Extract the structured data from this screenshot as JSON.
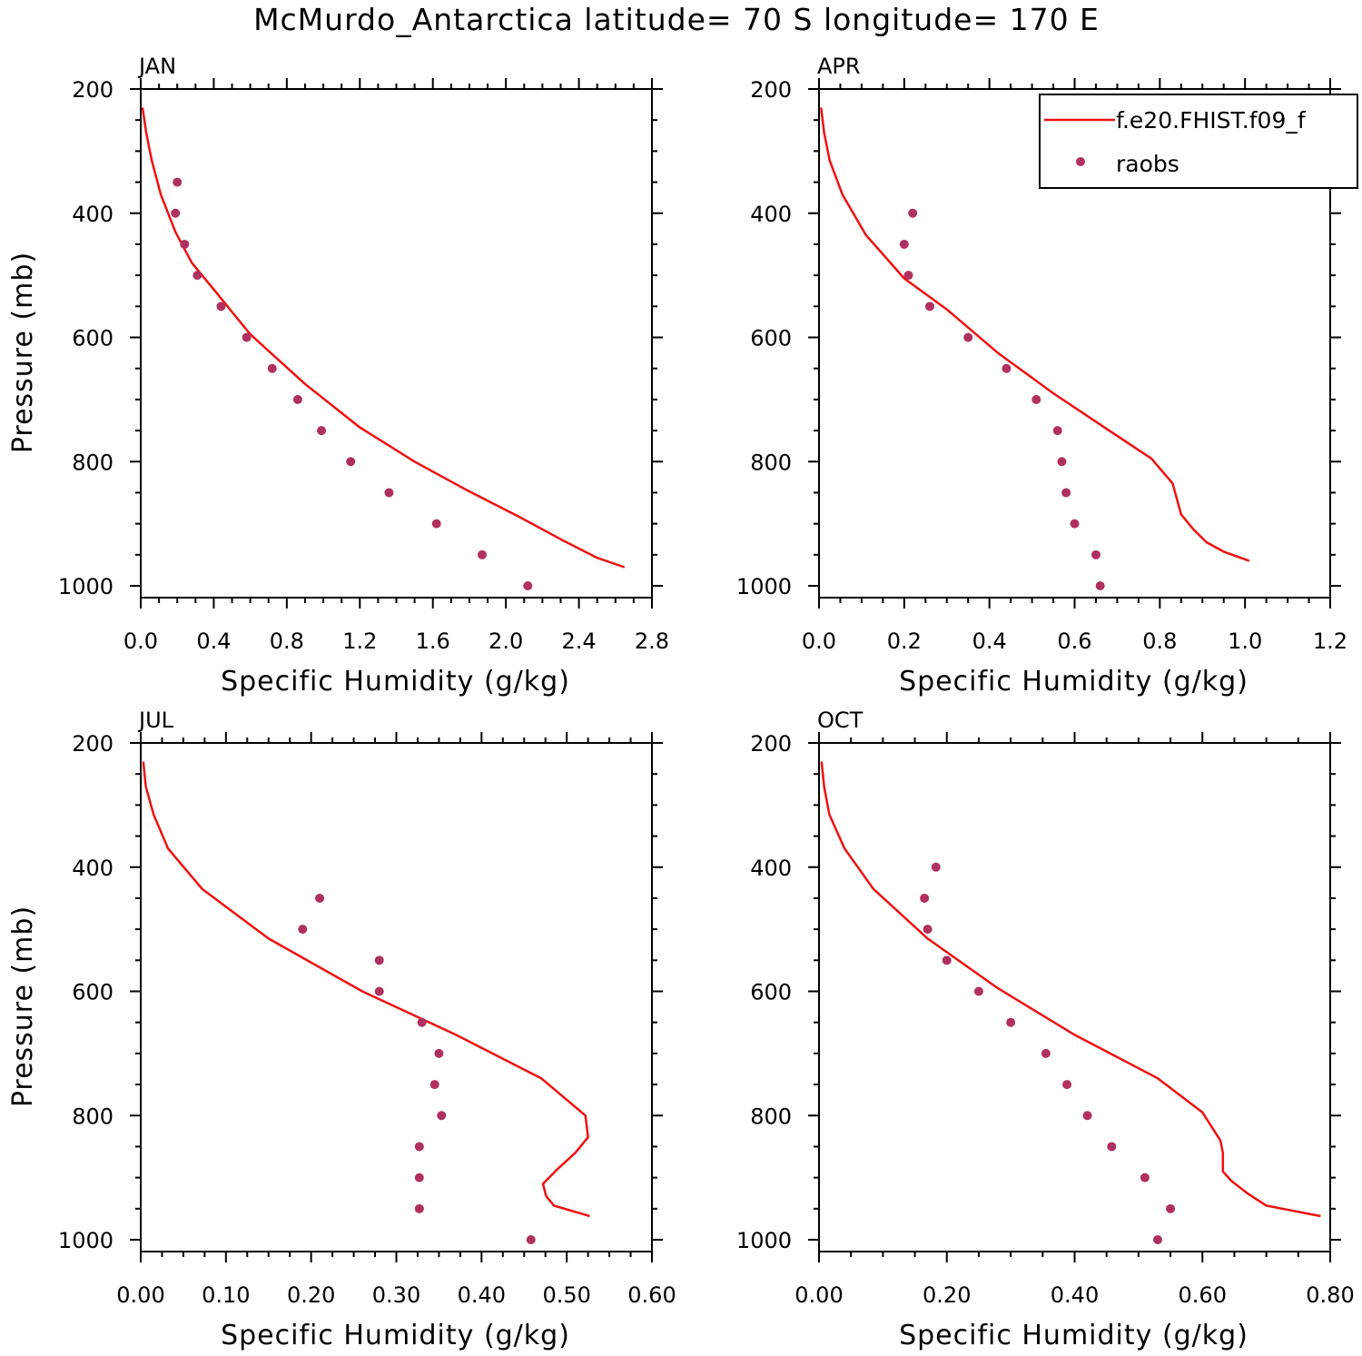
{
  "figure": {
    "title": "McMurdo_Antarctica  latitude= 70 S longitude= 170 E"
  },
  "colors": {
    "model_line": "#ee1111",
    "obs_marker": "#b03060",
    "axis": "#000000"
  },
  "legend": {
    "placement": "top-right of APR panel",
    "entries": [
      {
        "label": "f.e20.FHIST.f09_f",
        "style": "line"
      },
      {
        "label": "raobs",
        "style": "marker"
      }
    ]
  },
  "chart_data": [
    {
      "type": "line",
      "panel": "JAN",
      "title": "JAN",
      "xlabel": "Specific Humidity (g/kg)",
      "ylabel": "Pressure (mb)",
      "xlim": [
        0,
        2.8
      ],
      "ylim": [
        1000,
        200
      ],
      "yreverse": true,
      "xticks": [
        "0.0",
        "0.4",
        "0.8",
        "1.2",
        "1.6",
        "2.0",
        "2.4",
        "2.8"
      ],
      "yticks": [
        "200",
        "400",
        "600",
        "800",
        "1000"
      ],
      "series": [
        {
          "kind": "line",
          "x": [
            0.01,
            0.03,
            0.06,
            0.11,
            0.19,
            0.28,
            0.42,
            0.6,
            0.9,
            1.2,
            1.5,
            1.78,
            2.08,
            2.3,
            2.5,
            2.65
          ],
          "y": [
            230,
            270,
            315,
            370,
            430,
            480,
            530,
            595,
            675,
            745,
            800,
            845,
            890,
            925,
            955,
            970
          ]
        },
        {
          "kind": "scatter",
          "x": [
            0.2,
            0.19,
            0.24,
            0.31,
            0.44,
            0.58,
            0.72,
            0.86,
            0.99,
            1.15,
            1.36,
            1.62,
            1.87,
            2.12
          ],
          "y": [
            350,
            400,
            450,
            500,
            550,
            600,
            650,
            700,
            750,
            800,
            850,
            900,
            950,
            1000
          ]
        }
      ]
    },
    {
      "type": "line",
      "panel": "APR",
      "title": "APR",
      "xlabel": "Specific Humidity (g/kg)",
      "ylabel": "",
      "xlim": [
        0,
        1.2
      ],
      "ylim": [
        1000,
        200
      ],
      "yreverse": true,
      "xticks": [
        "0.0",
        "0.2",
        "0.4",
        "0.6",
        "0.8",
        "1.0",
        "1.2"
      ],
      "yticks": [
        "200",
        "400",
        "600",
        "800",
        "1000"
      ],
      "series": [
        {
          "kind": "line",
          "x": [
            0.005,
            0.012,
            0.025,
            0.055,
            0.11,
            0.2,
            0.3,
            0.42,
            0.55,
            0.67,
            0.78,
            0.83,
            0.85,
            0.88,
            0.91,
            0.95,
            1.01
          ],
          "y": [
            230,
            270,
            315,
            370,
            435,
            505,
            555,
            625,
            690,
            745,
            795,
            835,
            885,
            910,
            930,
            945,
            960
          ]
        },
        {
          "kind": "scatter",
          "x": [
            0.22,
            0.2,
            0.21,
            0.26,
            0.35,
            0.44,
            0.51,
            0.56,
            0.57,
            0.58,
            0.6,
            0.65,
            0.66
          ],
          "y": [
            400,
            450,
            500,
            550,
            600,
            650,
            700,
            750,
            800,
            850,
            900,
            950,
            1000
          ]
        }
      ]
    },
    {
      "type": "line",
      "panel": "JUL",
      "title": "JUL",
      "xlabel": "Specific Humidity (g/kg)",
      "ylabel": "Pressure (mb)",
      "xlim": [
        0,
        0.6
      ],
      "ylim": [
        1000,
        200
      ],
      "yreverse": true,
      "xticks": [
        "0.00",
        "0.10",
        "0.20",
        "0.30",
        "0.40",
        "0.50",
        "0.60"
      ],
      "yticks": [
        "200",
        "400",
        "600",
        "800",
        "1000"
      ],
      "series": [
        {
          "kind": "line",
          "x": [
            0.003,
            0.006,
            0.015,
            0.032,
            0.072,
            0.15,
            0.26,
            0.37,
            0.47,
            0.522,
            0.525,
            0.51,
            0.49,
            0.472,
            0.476,
            0.485,
            0.527
          ],
          "y": [
            230,
            270,
            315,
            370,
            435,
            515,
            600,
            670,
            740,
            800,
            835,
            860,
            885,
            910,
            930,
            945,
            962
          ]
        },
        {
          "kind": "scatter",
          "x": [
            0.21,
            0.19,
            0.28,
            0.28,
            0.33,
            0.35,
            0.345,
            0.353,
            0.327,
            0.327,
            0.327,
            0.458
          ],
          "y": [
            450,
            500,
            550,
            600,
            650,
            700,
            750,
            800,
            850,
            900,
            950,
            1000
          ]
        }
      ]
    },
    {
      "type": "line",
      "panel": "OCT",
      "title": "OCT",
      "xlabel": "Specific Humidity (g/kg)",
      "ylabel": "",
      "xlim": [
        0,
        0.8
      ],
      "ylim": [
        1000,
        200
      ],
      "yreverse": true,
      "xticks": [
        "0.00",
        "0.20",
        "0.40",
        "0.60",
        "0.80"
      ],
      "yticks": [
        "200",
        "400",
        "600",
        "800",
        "1000"
      ],
      "series": [
        {
          "kind": "line",
          "x": [
            0.004,
            0.008,
            0.016,
            0.04,
            0.085,
            0.17,
            0.28,
            0.4,
            0.53,
            0.6,
            0.628,
            0.632,
            0.632,
            0.645,
            0.67,
            0.7,
            0.785
          ],
          "y": [
            230,
            270,
            315,
            370,
            435,
            515,
            595,
            670,
            740,
            795,
            840,
            860,
            890,
            905,
            925,
            945,
            962
          ]
        },
        {
          "kind": "scatter",
          "x": [
            0.183,
            0.165,
            0.17,
            0.2,
            0.25,
            0.3,
            0.355,
            0.388,
            0.42,
            0.458,
            0.51,
            0.55,
            0.53
          ],
          "y": [
            400,
            450,
            500,
            550,
            600,
            650,
            700,
            750,
            800,
            850,
            900,
            950,
            1000
          ]
        }
      ]
    }
  ]
}
